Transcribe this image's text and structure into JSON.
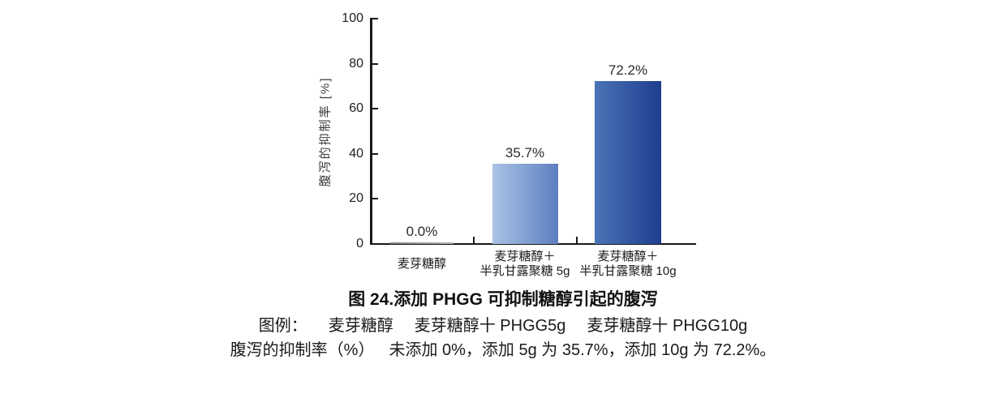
{
  "page": {
    "background": "#ffffff"
  },
  "colors": {
    "axis": "#1a1a1a",
    "text": "#1f1f1f",
    "value_label": "#2b2b2b"
  },
  "chart_data": {
    "type": "bar",
    "title": "图 24.添加 PHGG 可抑制糖醇引起的腹泻",
    "xlabel": "",
    "ylabel": "腹泻的抑制率 [%]",
    "ylim": [
      0,
      100
    ],
    "yticks": [
      0,
      20,
      40,
      60,
      80,
      100
    ],
    "grid": false,
    "legend_position": "none",
    "categories": [
      [
        "麦芽糖醇"
      ],
      [
        "麦芽糖醇＋",
        "半乳甘露聚糖 5g"
      ],
      [
        "麦芽糖醇＋",
        "半乳甘露聚糖 10g"
      ]
    ],
    "values": [
      0.0,
      35.7,
      72.2
    ],
    "value_labels": [
      "0.0%",
      "35.7%",
      "72.2%"
    ],
    "bar_colors": [
      {
        "from": "#808080",
        "to": "#b3b3b3"
      },
      {
        "from": "#a9c3e4",
        "to": "#5d7fc0"
      },
      {
        "from": "#4a74b7",
        "to": "#1e3d8e"
      }
    ]
  },
  "caption": {
    "title": "图 24.添加 PHGG 可抑制糖醇引起的腹泻",
    "legend_label": "图例：",
    "legend_items": [
      "麦芽糖醇",
      "麦芽糖醇十 PHGG5g",
      "麦芽糖醇十 PHGG10g"
    ],
    "summary_prefix": "腹泻的抑制率（%）",
    "summary_text": "未添加 0%，添加 5g 为 35.7%，添加 10g 为 72.2%。"
  }
}
